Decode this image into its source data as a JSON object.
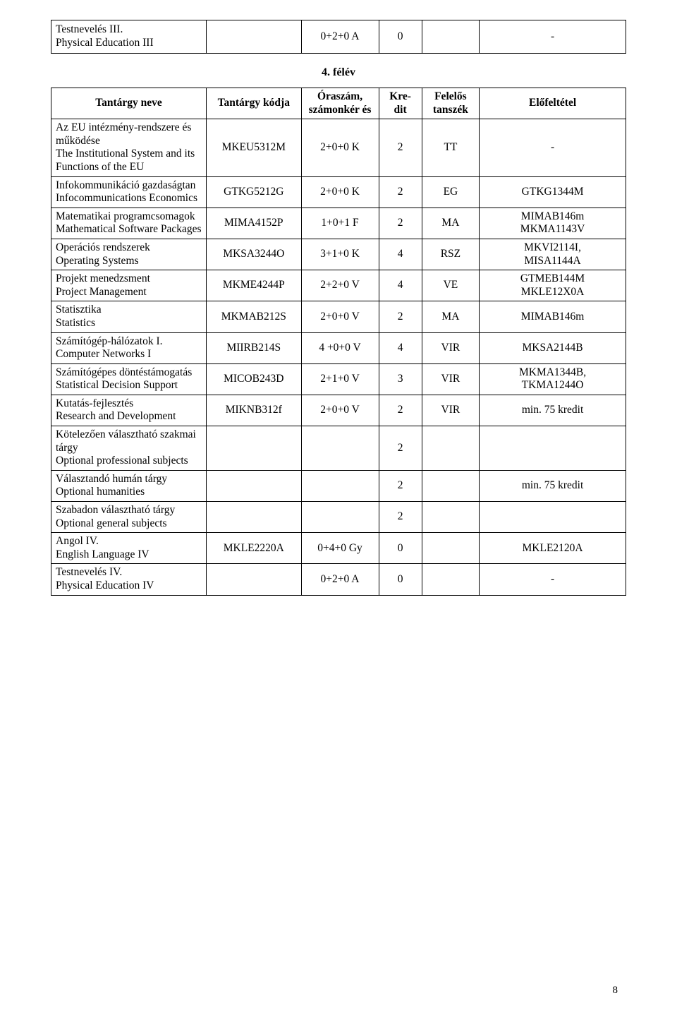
{
  "topRow": {
    "name_hu": "Testnevelés III.",
    "name_en": "Physical Education III",
    "code": "",
    "hours": "0+2+0 A",
    "credit": "0",
    "dept": "",
    "pre": "-"
  },
  "semesterTitle": "4. félév",
  "headers": {
    "name": "Tantárgy neve",
    "code": "Tantárgy kódja",
    "hours": "Óraszám, számonkér és",
    "credit": "Kre-dit",
    "dept": "Felelős tanszék",
    "pre": "Előfeltétel"
  },
  "rows": [
    {
      "name_hu": "Az EU intézmény-rendszere és működése",
      "name_en": "The Institutional System and its Functions of the EU",
      "code": "MKEU5312M",
      "hours": "2+0+0 K",
      "credit": "2",
      "dept": "TT",
      "pre": "-"
    },
    {
      "name_hu": "Infokommunikáció gazdaságtan",
      "name_en": "Infocommunications Economics",
      "code": "GTKG5212G",
      "hours": "2+0+0 K",
      "credit": "2",
      "dept": "EG",
      "pre": "GTKG1344M"
    },
    {
      "name_hu": "Matematikai programcsomagok",
      "name_en": "Mathematical Software Packages",
      "code": "MIMA4152P",
      "hours": "1+0+1 F",
      "credit": "2",
      "dept": "MA",
      "pre": "MIMAB146m\nMKMA1143V"
    },
    {
      "name_hu": "Operációs rendszerek",
      "name_en": "Operating Systems",
      "code": "MKSA3244O",
      "hours": "3+1+0 K",
      "credit": "4",
      "dept": "RSZ",
      "pre": "MKVI2114I,\nMISA1144A"
    },
    {
      "name_hu": "Projekt menedzsment",
      "name_en": "Project Management",
      "code": "MKME4244P",
      "hours": "2+2+0 V",
      "credit": "4",
      "dept": "VE",
      "pre": "GTMEB144M\nMKLE12X0A"
    },
    {
      "name_hu": "Statisztika",
      "name_en": "Statistics",
      "code": "MKMAB212S",
      "hours": "2+0+0 V",
      "credit": "2",
      "dept": "MA",
      "pre": "MIMAB146m"
    },
    {
      "name_hu": "Számítógép-hálózatok I.",
      "name_en": "Computer Networks I",
      "code": "MIIRB214S",
      "hours": "4 +0+0 V",
      "credit": "4",
      "dept": "VIR",
      "pre": "MKSA2144B"
    },
    {
      "name_hu": "Számítógépes döntéstámogatás",
      "name_en": "Statistical Decision Support",
      "code": "MICOB243D",
      "hours": "2+1+0  V",
      "credit": "3",
      "dept": "VIR",
      "pre": "MKMA1344B,\nTKMA1244O"
    },
    {
      "name_hu": "Kutatás-fejlesztés",
      "name_en": "Research and Development",
      "code": "MIKNB312f",
      "hours": "2+0+0  V",
      "credit": "2",
      "dept": "VIR",
      "pre": "min. 75 kredit"
    },
    {
      "name_hu": "Kötelezően választható szakmai tárgy",
      "name_en": "Optional professional subjects",
      "code": "",
      "hours": "",
      "credit": "2",
      "dept": "",
      "pre": ""
    },
    {
      "name_hu": "Választandó humán tárgy",
      "name_en": "Optional humanities",
      "code": "",
      "hours": "",
      "credit": "2",
      "dept": "",
      "pre": "min. 75 kredit"
    },
    {
      "name_hu": "Szabadon választható tárgy",
      "name_en": "Optional general subjects",
      "code": "",
      "hours": "",
      "credit": "2",
      "dept": "",
      "pre": ""
    },
    {
      "name_hu": "Angol IV.",
      "name_en": "English Language IV",
      "code": "MKLE2220A",
      "hours": "0+4+0 Gy",
      "credit": "0",
      "dept": "",
      "pre": "MKLE2120A"
    },
    {
      "name_hu": "Testnevelés IV.",
      "name_en": "Physical Education IV",
      "code": "",
      "hours": "0+2+0 A",
      "credit": "0",
      "dept": "",
      "pre": "-"
    }
  ],
  "pageNumber": "8"
}
